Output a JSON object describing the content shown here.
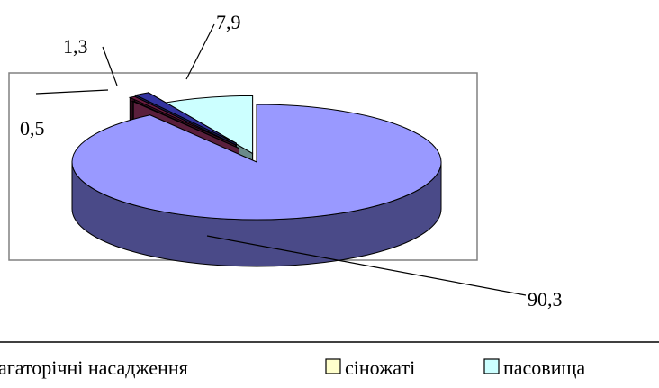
{
  "chart_data": {
    "type": "pie",
    "style": "3d-exploded",
    "categories": [
      "",
      "",
      "",
      "",
      ""
    ],
    "values": [
      90.3,
      0.1,
      0.5,
      1.3,
      7.9
    ],
    "data_labels": [
      "90,3",
      "",
      "0,5",
      "1,3",
      "7,9"
    ],
    "colors": [
      "#9999ff",
      "#993366",
      "#6b1b40",
      "#3333a0",
      "#ccffff"
    ],
    "side_colors": [
      "#4a4a88",
      "#5a1f3c",
      "#3e0f26",
      "#1c1c5a",
      "#6a8a8a"
    ],
    "legend": {
      "position": "bottom",
      "entries": [
        {
          "label": "агаторічні насадження",
          "color": "#ffffff"
        },
        {
          "label": "сіножаті",
          "color": "#ffffcc"
        },
        {
          "label": "пасовища",
          "color": "#ccffff"
        }
      ]
    },
    "title": ""
  }
}
